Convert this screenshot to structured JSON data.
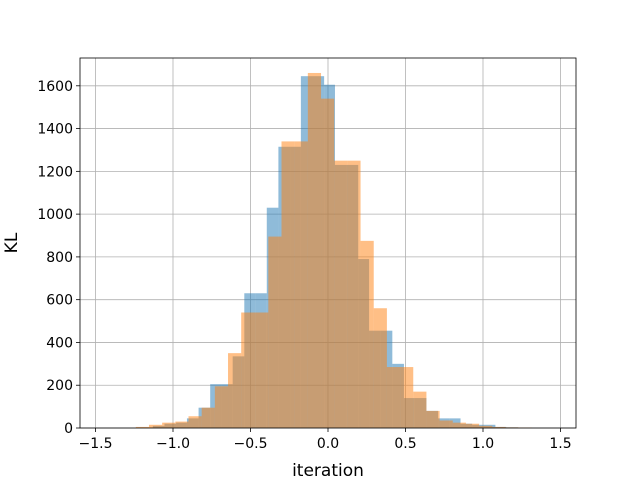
{
  "chart_data": {
    "type": "bar",
    "title": "",
    "xlabel": "iteration",
    "ylabel": "KL",
    "xlim": [
      -1.6,
      1.6
    ],
    "ylim": [
      0,
      1730
    ],
    "grid": true,
    "xticks": [
      -1.5,
      -1.0,
      -0.5,
      0.0,
      0.5,
      1.0,
      1.5
    ],
    "xtick_labels": [
      "−1.5",
      "−1.0",
      "−0.5",
      "0.0",
      "0.5",
      "1.0",
      "1.5"
    ],
    "yticks": [
      0,
      200,
      400,
      600,
      800,
      1000,
      1200,
      1400,
      1600
    ],
    "ytick_labels": [
      "0",
      "200",
      "400",
      "600",
      "800",
      "1000",
      "1200",
      "1400",
      "1600"
    ],
    "series": [
      {
        "color": "#1f77b4",
        "opacity": 0.5,
        "bins": [
          [
            -1.13,
            -1.055,
            10
          ],
          [
            -1.055,
            -0.98,
            20
          ],
          [
            -0.98,
            -0.91,
            25
          ],
          [
            -0.91,
            -0.835,
            45
          ],
          [
            -0.835,
            -0.76,
            95
          ],
          [
            -0.76,
            -0.69,
            205
          ],
          [
            -0.69,
            -0.615,
            205
          ],
          [
            -0.615,
            -0.54,
            335
          ],
          [
            -0.54,
            -0.47,
            630
          ],
          [
            -0.47,
            -0.395,
            630
          ],
          [
            -0.395,
            -0.32,
            1030
          ],
          [
            -0.32,
            -0.245,
            1315
          ],
          [
            -0.245,
            -0.175,
            1315
          ],
          [
            -0.175,
            -0.1,
            1645
          ],
          [
            -0.1,
            -0.025,
            1645
          ],
          [
            -0.025,
            0.045,
            1605
          ],
          [
            0.045,
            0.12,
            1230
          ],
          [
            0.12,
            0.195,
            1230
          ],
          [
            0.195,
            0.265,
            790
          ],
          [
            0.265,
            0.34,
            455
          ],
          [
            0.34,
            0.415,
            455
          ],
          [
            0.415,
            0.49,
            300
          ],
          [
            0.49,
            0.56,
            140
          ],
          [
            0.56,
            0.635,
            140
          ],
          [
            0.635,
            0.71,
            80
          ],
          [
            0.71,
            0.785,
            45
          ],
          [
            0.785,
            0.855,
            45
          ],
          [
            0.855,
            0.93,
            20
          ],
          [
            0.93,
            1.005,
            15
          ],
          [
            1.005,
            1.08,
            15
          ],
          [
            1.08,
            1.15,
            5
          ],
          [
            1.15,
            1.225,
            3
          ]
        ]
      },
      {
        "color": "#ff7f0e",
        "opacity": 0.5,
        "bins": [
          [
            -1.24,
            -1.155,
            5
          ],
          [
            -1.155,
            -1.07,
            15
          ],
          [
            -1.07,
            -0.985,
            25
          ],
          [
            -0.985,
            -0.9,
            30
          ],
          [
            -0.9,
            -0.815,
            55
          ],
          [
            -0.815,
            -0.73,
            95
          ],
          [
            -0.73,
            -0.645,
            195
          ],
          [
            -0.645,
            -0.56,
            350
          ],
          [
            -0.56,
            -0.47,
            540
          ],
          [
            -0.47,
            -0.385,
            540
          ],
          [
            -0.385,
            -0.3,
            895
          ],
          [
            -0.3,
            -0.215,
            1340
          ],
          [
            -0.215,
            -0.13,
            1340
          ],
          [
            -0.13,
            -0.045,
            1660
          ],
          [
            -0.045,
            0.04,
            1540
          ],
          [
            0.04,
            0.125,
            1250
          ],
          [
            0.125,
            0.21,
            1250
          ],
          [
            0.21,
            0.295,
            875
          ],
          [
            0.295,
            0.38,
            560
          ],
          [
            0.38,
            0.465,
            285
          ],
          [
            0.465,
            0.55,
            285
          ],
          [
            0.55,
            0.635,
            170
          ],
          [
            0.635,
            0.72,
            80
          ],
          [
            0.72,
            0.805,
            35
          ],
          [
            0.805,
            0.89,
            25
          ],
          [
            0.89,
            0.975,
            20
          ],
          [
            0.975,
            1.06,
            10
          ],
          [
            1.06,
            1.145,
            5
          ],
          [
            1.145,
            1.23,
            3
          ],
          [
            1.23,
            1.315,
            2
          ]
        ]
      }
    ]
  }
}
